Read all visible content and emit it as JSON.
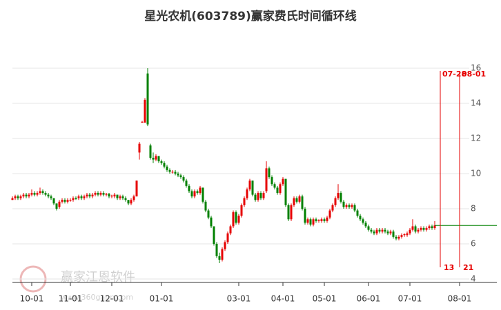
{
  "chart_data": {
    "type": "candlestick",
    "title": "星光农机(603789)赢家费氏时间循环线",
    "up_color": "#e60000",
    "down_color": "#008000",
    "grid": true,
    "xlim": [
      0,
      175
    ],
    "ylim": [
      4,
      16
    ],
    "yticks": [
      4,
      6,
      8,
      10,
      12,
      14,
      16
    ],
    "xticks": [
      {
        "value": 7,
        "label": "10-01"
      },
      {
        "value": 21,
        "label": "11-01"
      },
      {
        "value": 36,
        "label": "12-01"
      },
      {
        "value": 54,
        "label": "01-01"
      },
      {
        "value": 82,
        "label": "03-01"
      },
      {
        "value": 98,
        "label": "04-01"
      },
      {
        "value": 113,
        "label": "05-01"
      },
      {
        "value": 129,
        "label": "06-01"
      },
      {
        "value": 144,
        "label": "07-01"
      },
      {
        "value": 162,
        "label": "08-01"
      }
    ],
    "ohlc": [
      [
        8.5,
        8.6,
        8.7,
        8.5
      ],
      [
        8.6,
        8.7,
        8.8,
        8.5
      ],
      [
        8.7,
        8.6,
        8.8,
        8.5
      ],
      [
        8.6,
        8.7,
        8.8,
        8.5
      ],
      [
        8.7,
        8.8,
        8.9,
        8.6
      ],
      [
        8.8,
        8.7,
        8.9,
        8.6
      ],
      [
        8.7,
        8.8,
        8.9,
        8.6
      ],
      [
        8.8,
        8.9,
        9.1,
        8.7
      ],
      [
        8.9,
        8.8,
        9.0,
        8.7
      ],
      [
        8.8,
        8.9,
        9.0,
        8.7
      ],
      [
        8.9,
        9.0,
        9.2,
        8.8
      ],
      [
        9.0,
        8.9,
        9.1,
        8.8
      ],
      [
        8.9,
        8.8,
        9.0,
        8.7
      ],
      [
        8.8,
        8.7,
        8.9,
        8.6
      ],
      [
        8.7,
        8.6,
        8.8,
        8.5
      ],
      [
        8.6,
        8.3,
        8.6,
        8.2
      ],
      [
        8.3,
        8.0,
        8.3,
        7.9
      ],
      [
        8.1,
        8.4,
        8.5,
        8.0
      ],
      [
        8.4,
        8.5,
        8.6,
        8.3
      ],
      [
        8.5,
        8.4,
        8.6,
        8.3
      ],
      [
        8.4,
        8.5,
        8.6,
        8.3
      ],
      [
        8.45,
        8.5,
        8.6,
        8.4
      ],
      [
        8.5,
        8.6,
        8.7,
        8.4
      ],
      [
        8.6,
        8.55,
        8.7,
        8.5
      ],
      [
        8.6,
        8.7,
        8.8,
        8.5
      ],
      [
        8.7,
        8.6,
        8.8,
        8.5
      ],
      [
        8.6,
        8.7,
        8.8,
        8.5
      ],
      [
        8.7,
        8.8,
        8.9,
        8.6
      ],
      [
        8.8,
        8.7,
        8.9,
        8.6
      ],
      [
        8.7,
        8.8,
        8.9,
        8.6
      ],
      [
        8.8,
        8.9,
        9.0,
        8.7
      ],
      [
        8.9,
        8.8,
        9.0,
        8.7
      ],
      [
        8.8,
        8.9,
        9.0,
        8.7
      ],
      [
        8.9,
        8.8,
        9.0,
        8.7
      ],
      [
        8.8,
        8.85,
        8.9,
        8.7
      ],
      [
        8.85,
        8.7,
        8.9,
        8.6
      ],
      [
        8.7,
        8.75,
        8.8,
        8.6
      ],
      [
        8.7,
        8.8,
        8.9,
        8.6
      ],
      [
        8.8,
        8.6,
        8.8,
        8.5
      ],
      [
        8.6,
        8.7,
        8.8,
        8.5
      ],
      [
        8.7,
        8.6,
        8.8,
        8.5
      ],
      [
        8.6,
        8.5,
        8.7,
        8.4
      ],
      [
        8.5,
        8.3,
        8.5,
        8.2
      ],
      [
        8.3,
        8.5,
        8.6,
        8.2
      ],
      [
        8.5,
        8.7,
        8.8,
        8.4
      ],
      [
        8.7,
        9.6,
        9.6,
        8.7
      ],
      [
        11.2,
        11.7,
        11.8,
        10.8
      ],
      [
        12.9,
        12.95,
        13.0,
        12.9
      ],
      [
        12.9,
        14.2,
        14.3,
        12.9
      ],
      [
        15.7,
        12.8,
        16.0,
        12.7
      ],
      [
        11.6,
        10.9,
        11.7,
        10.8
      ],
      [
        10.9,
        10.8,
        11.2,
        10.6
      ],
      [
        10.8,
        11.0,
        11.1,
        10.7
      ],
      [
        11.0,
        10.7,
        11.0,
        10.6
      ],
      [
        10.7,
        10.6,
        10.8,
        10.5
      ],
      [
        10.6,
        10.4,
        10.7,
        10.3
      ],
      [
        10.4,
        10.2,
        10.5,
        10.1
      ],
      [
        10.2,
        10.1,
        10.3,
        10.0
      ],
      [
        10.1,
        10.1,
        10.2,
        10.0
      ],
      [
        10.1,
        10.0,
        10.2,
        9.9
      ],
      [
        10.0,
        9.9,
        10.1,
        9.8
      ],
      [
        9.9,
        9.8,
        10.0,
        9.7
      ],
      [
        9.8,
        9.6,
        9.9,
        9.5
      ],
      [
        9.6,
        9.3,
        9.7,
        9.2
      ],
      [
        9.3,
        9.0,
        9.4,
        8.9
      ],
      [
        9.0,
        8.7,
        9.1,
        8.6
      ],
      [
        8.7,
        9.0,
        9.1,
        8.6
      ],
      [
        9.0,
        8.9,
        9.1,
        8.8
      ],
      [
        8.9,
        9.2,
        9.3,
        8.8
      ],
      [
        9.2,
        8.4,
        9.2,
        8.3
      ],
      [
        8.4,
        7.9,
        8.5,
        7.8
      ],
      [
        7.9,
        7.5,
        8.0,
        7.4
      ],
      [
        7.5,
        7.0,
        7.6,
        6.9
      ],
      [
        7.0,
        6.0,
        7.0,
        5.9
      ],
      [
        6.0,
        5.3,
        6.1,
        5.2
      ],
      [
        5.3,
        5.1,
        5.5,
        4.9
      ],
      [
        5.1,
        5.7,
        5.8,
        5.0
      ],
      [
        5.7,
        6.1,
        6.2,
        5.6
      ],
      [
        6.1,
        6.6,
        6.7,
        6.0
      ],
      [
        6.6,
        7.0,
        7.1,
        6.5
      ],
      [
        7.0,
        7.8,
        7.9,
        6.9
      ],
      [
        7.8,
        7.2,
        7.9,
        7.1
      ],
      [
        7.2,
        7.6,
        7.7,
        7.1
      ],
      [
        7.6,
        8.2,
        8.3,
        7.5
      ],
      [
        8.2,
        8.6,
        8.7,
        8.1
      ],
      [
        8.6,
        9.1,
        9.2,
        8.5
      ],
      [
        9.1,
        9.6,
        9.7,
        9.0
      ],
      [
        9.6,
        8.8,
        9.6,
        8.7
      ],
      [
        8.8,
        8.5,
        8.9,
        8.4
      ],
      [
        8.5,
        8.9,
        9.0,
        8.4
      ],
      [
        8.9,
        8.6,
        9.0,
        8.5
      ],
      [
        8.6,
        8.9,
        9.0,
        8.5
      ],
      [
        9.0,
        10.3,
        10.7,
        8.9
      ],
      [
        10.3,
        9.8,
        10.4,
        9.7
      ],
      [
        9.8,
        9.4,
        9.9,
        9.3
      ],
      [
        9.4,
        9.2,
        9.5,
        9.1
      ],
      [
        9.2,
        8.9,
        9.3,
        8.8
      ],
      [
        8.9,
        9.4,
        9.5,
        8.8
      ],
      [
        9.4,
        9.7,
        9.8,
        9.3
      ],
      [
        9.7,
        8.2,
        9.7,
        8.1
      ],
      [
        8.2,
        7.4,
        8.3,
        7.3
      ],
      [
        7.4,
        8.2,
        8.3,
        7.3
      ],
      [
        8.2,
        8.6,
        8.7,
        8.1
      ],
      [
        8.6,
        8.4,
        8.7,
        8.3
      ],
      [
        8.4,
        8.7,
        8.8,
        8.3
      ],
      [
        8.7,
        8.0,
        8.8,
        7.9
      ],
      [
        8.0,
        7.2,
        8.1,
        7.1
      ],
      [
        7.2,
        7.4,
        7.5,
        7.1
      ],
      [
        7.4,
        7.1,
        7.5,
        7.0
      ],
      [
        7.1,
        7.4,
        7.5,
        7.0
      ],
      [
        7.4,
        7.3,
        7.5,
        7.2
      ],
      [
        7.3,
        7.35,
        7.4,
        7.2
      ],
      [
        7.3,
        7.4,
        7.5,
        7.2
      ],
      [
        7.4,
        7.3,
        7.5,
        7.2
      ],
      [
        7.3,
        7.5,
        7.6,
        7.2
      ],
      [
        7.5,
        7.9,
        8.0,
        7.4
      ],
      [
        7.9,
        8.2,
        8.3,
        7.8
      ],
      [
        8.2,
        8.6,
        8.7,
        8.1
      ],
      [
        8.6,
        8.9,
        9.4,
        8.5
      ],
      [
        8.9,
        8.4,
        9.0,
        8.3
      ],
      [
        8.4,
        8.1,
        8.5,
        8.0
      ],
      [
        8.1,
        8.2,
        8.3,
        8.0
      ],
      [
        8.2,
        8.1,
        8.3,
        8.0
      ],
      [
        8.1,
        8.2,
        8.3,
        8.0
      ],
      [
        8.2,
        7.9,
        8.3,
        7.8
      ],
      [
        7.9,
        7.6,
        8.0,
        7.5
      ],
      [
        7.6,
        7.4,
        7.7,
        7.3
      ],
      [
        7.4,
        7.2,
        7.5,
        7.1
      ],
      [
        7.2,
        7.0,
        7.3,
        6.9
      ],
      [
        7.0,
        6.8,
        7.1,
        6.7
      ],
      [
        6.8,
        6.7,
        6.9,
        6.6
      ],
      [
        6.7,
        6.6,
        6.8,
        6.5
      ],
      [
        6.6,
        6.8,
        6.9,
        6.5
      ],
      [
        6.8,
        6.7,
        6.9,
        6.6
      ],
      [
        6.7,
        6.8,
        6.9,
        6.6
      ],
      [
        6.8,
        6.7,
        6.9,
        6.6
      ],
      [
        6.7,
        6.6,
        6.8,
        6.5
      ],
      [
        6.6,
        6.7,
        6.8,
        6.5
      ],
      [
        6.7,
        6.4,
        6.8,
        6.3
      ],
      [
        6.4,
        6.3,
        6.5,
        6.2
      ],
      [
        6.3,
        6.4,
        6.5,
        6.2
      ],
      [
        6.4,
        6.5,
        6.6,
        6.3
      ],
      [
        6.5,
        6.55,
        6.6,
        6.4
      ],
      [
        6.5,
        6.6,
        6.7,
        6.4
      ],
      [
        6.6,
        6.8,
        6.9,
        6.5
      ],
      [
        6.8,
        7.0,
        7.4,
        6.7
      ],
      [
        7.0,
        6.7,
        7.1,
        6.6
      ],
      [
        6.7,
        6.8,
        6.9,
        6.6
      ],
      [
        6.8,
        6.9,
        7.0,
        6.7
      ],
      [
        6.9,
        6.8,
        7.0,
        6.7
      ],
      [
        6.8,
        6.9,
        7.0,
        6.7
      ],
      [
        6.9,
        7.0,
        7.1,
        6.8
      ],
      [
        7.0,
        6.9,
        7.1,
        6.8
      ],
      [
        6.9,
        7.05,
        7.3,
        6.8
      ]
    ],
    "cycle_lines": [
      {
        "x": 155,
        "date": "07-28",
        "count": "13"
      },
      {
        "x": 162,
        "date": "08-01",
        "count": "21"
      }
    ],
    "watermark": {
      "name": "赢家江恩软件",
      "url": "www.360gann.com"
    }
  }
}
